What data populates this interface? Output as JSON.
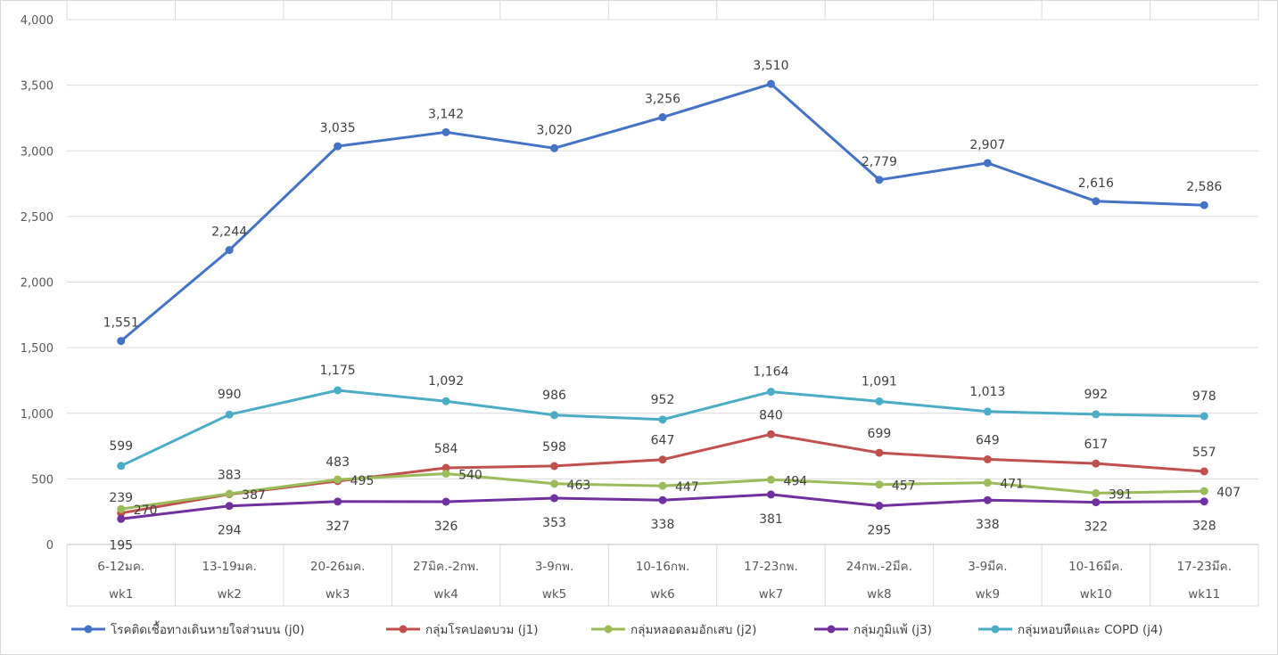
{
  "chart_data": {
    "type": "line",
    "title": "",
    "xlabel": "",
    "ylabel": "",
    "ylim": [
      0,
      4000
    ],
    "yticks": [
      "0",
      "500",
      "1,000",
      "1,500",
      "2,000",
      "2,500",
      "3,000",
      "3,500",
      "4,000"
    ],
    "grid": true,
    "legend_position": "bottom",
    "categories": [
      {
        "date": "6-12มค.",
        "week": "wk1"
      },
      {
        "date": "13-19มค.",
        "week": "wk2"
      },
      {
        "date": "20-26มค.",
        "week": "wk3"
      },
      {
        "date": "27มิค.-2กพ.",
        "week": "wk4"
      },
      {
        "date": "3-9กพ.",
        "week": "wk5"
      },
      {
        "date": "10-16กพ.",
        "week": "wk6"
      },
      {
        "date": "17-23กพ.",
        "week": "wk7"
      },
      {
        "date": "24กพ.-2มีค.",
        "week": "wk8"
      },
      {
        "date": "3-9มีค.",
        "week": "wk9"
      },
      {
        "date": "10-16มีค.",
        "week": "wk10"
      },
      {
        "date": "17-23มีค.",
        "week": "wk11"
      }
    ],
    "series": [
      {
        "name": "โรคติดเชื้อทางเดินหายใจส่วนบน (j0)",
        "color": "#4472C4",
        "values": [
          1551,
          2244,
          3035,
          3142,
          3020,
          3256,
          3510,
          2779,
          2907,
          2616,
          2586
        ],
        "labels": [
          "1,551",
          "2,244",
          "3,035",
          "3,142",
          "3,020",
          "3,256",
          "3,510",
          "2,779",
          "2,907",
          "2,616",
          "2,586"
        ]
      },
      {
        "name": "กลุ่มโรคปอดบวม (j1)",
        "color": "#C0504D",
        "values": [
          239,
          383,
          483,
          584,
          598,
          647,
          840,
          699,
          649,
          617,
          557
        ],
        "labels": [
          "239",
          "383",
          "483",
          "584",
          "598",
          "647",
          "840",
          "699",
          "649",
          "617",
          "557"
        ]
      },
      {
        "name": "กลุ่มหลอดลมอักเสบ (j2)",
        "color": "#9BBB59",
        "values": [
          270,
          387,
          495,
          540,
          463,
          447,
          494,
          457,
          471,
          391,
          407
        ],
        "labels": [
          "270",
          "387",
          "495",
          "540",
          "463",
          "447",
          "494",
          "457",
          "471",
          "391",
          "407"
        ]
      },
      {
        "name": "กลุ่มภูมิแพ้ (j3)",
        "color": "#7030A0",
        "values": [
          195,
          294,
          327,
          326,
          353,
          338,
          381,
          295,
          338,
          322,
          328
        ],
        "labels": [
          "195",
          "294",
          "327",
          "326",
          "353",
          "338",
          "381",
          "295",
          "338",
          "322",
          "328"
        ]
      },
      {
        "name": "กลุ่มหอบหืดและ COPD (j4)",
        "color": "#4BACC6",
        "values": [
          599,
          990,
          1175,
          1092,
          986,
          952,
          1164,
          1091,
          1013,
          992,
          978
        ],
        "labels": [
          "599",
          "990",
          "1,175",
          "1,092",
          "986",
          "952",
          "1,164",
          "1,091",
          "1,013",
          "992",
          "978"
        ]
      }
    ]
  }
}
